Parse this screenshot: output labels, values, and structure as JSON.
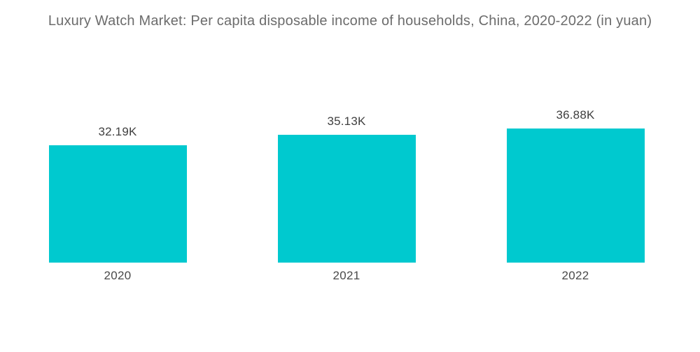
{
  "chart_data": {
    "type": "bar",
    "title": "Luxury Watch Market: Per capita disposable income of households, China, 2020-2022 (in yuan)",
    "categories": [
      "2020",
      "2021",
      "2022"
    ],
    "values": [
      32.19,
      35.13,
      36.88
    ],
    "value_labels": [
      "32.19K",
      "35.13K",
      "36.88K"
    ],
    "unit": "K yuan",
    "xlabel": "",
    "ylabel": "",
    "ylim": [
      0,
      36.88
    ],
    "grid": false,
    "legend": "none",
    "axis_lines": "none",
    "bar_color": "#00C9CF",
    "background_color": "#FFFFFF",
    "title_color": "#6C6C6C",
    "label_color": "#3F3F3F"
  }
}
